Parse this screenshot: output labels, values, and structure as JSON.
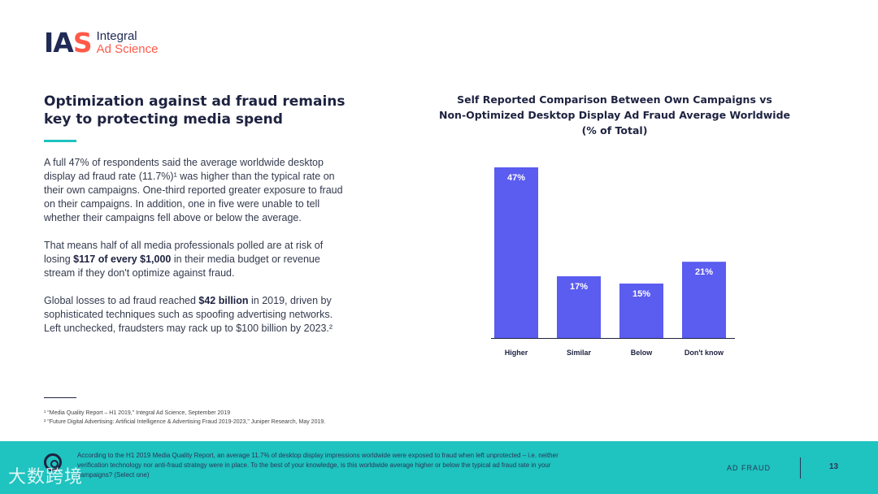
{
  "brand": {
    "mark_ia": "IA",
    "mark_s": "S",
    "line1": "Integral",
    "line2": "Ad Science"
  },
  "left": {
    "headline": "Optimization against ad fraud remains key to protecting media spend",
    "p1": "A full 47% of respondents said the average worldwide desktop display ad fraud rate (11.7%)¹ was higher than the typical rate on their own campaigns. One-third reported greater exposure to fraud on their campaigns. In addition, one in five were unable to tell whether their campaigns fell above or below the average.",
    "p2_a": "That means half of all media professionals polled are at risk of losing ",
    "p2_b": "$117 of every $1,000",
    "p2_c": " in their media budget or revenue stream if they don't optimize against fraud.",
    "p3_a": "Global losses to ad fraud reached ",
    "p3_b": "$42 billion",
    "p3_c": " in 2019, driven by sophisticated techniques such as spoofing advertising networks. Left unchecked, fraudsters may rack up to $100 billion by 2023.²"
  },
  "footnotes": [
    "¹ \"Media Quality Report – H1 2019,\" Integral Ad Science, September 2019",
    "² \"Future Digital Advertising: Artificial Intelligence & Advertising Fraud 2019-2023,\" Juniper Research, May 2019."
  ],
  "chart_data": {
    "type": "bar",
    "title": "Self Reported Comparison Between Own Campaigns vs Non-Optimized Desktop Display Ad Fraud Average Worldwide",
    "subtitle": "(% of Total)",
    "title_line1": "Self Reported Comparison Between Own Campaigns vs",
    "title_line2": "Non-Optimized Desktop Display Ad Fraud Average Worldwide",
    "categories": [
      "Higher",
      "Similar",
      "Below",
      "Don't know"
    ],
    "values": [
      47,
      17,
      15,
      21
    ],
    "value_labels": [
      "47%",
      "17%",
      "15%",
      "21%"
    ],
    "ylim": [
      0,
      50
    ],
    "grid": false,
    "bar_color": "#5b5cf0",
    "label_color": "#ffffff"
  },
  "bottom_bar": {
    "text": "According to the H1 2019 Media Quality Report, an average 11.7% of desktop display impressions worldwide were exposed to fraud when left unprotected – i.e. neither verification technology nor anti-fraud strategy were in place. To the best of your knowledge, is this worldwide average higher or below the typical ad fraud rate in your campaigns? (Select one)",
    "section": "AD FRAUD",
    "page": "13",
    "watermark": "大数跨境",
    "icon": "target-icon"
  },
  "colors": {
    "accent": "#1fc3bf",
    "brand_red": "#ff5a49",
    "navy": "#1d2240"
  }
}
